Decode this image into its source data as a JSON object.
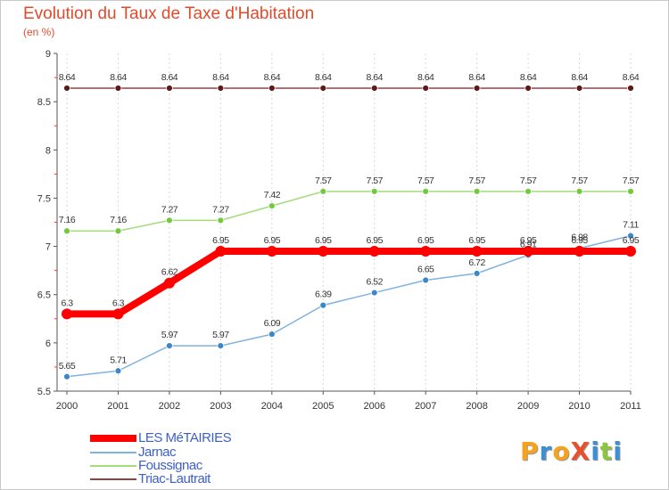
{
  "header": {
    "title": "Evolution du Taux de Taxe d'Habitation",
    "subtitle": "(en %)"
  },
  "logo": {
    "text": "ProXiti",
    "letters": [
      "P",
      "r",
      "o",
      "X",
      "i",
      "t",
      "i"
    ],
    "colors": [
      "#f7a21b",
      "#3a8fd6",
      "#f7a21b",
      "#e8502b",
      "#3a8fd6",
      "#8cc63f",
      "#3a8fd6"
    ]
  },
  "chart_data": {
    "type": "line",
    "categories": [
      "2000",
      "2001",
      "2002",
      "2003",
      "2004",
      "2005",
      "2006",
      "2007",
      "2008",
      "2009",
      "2010",
      "2011"
    ],
    "ylim": [
      5.5,
      9
    ],
    "yticks": [
      "5.5",
      "6",
      "6.5",
      "7",
      "7.5",
      "8",
      "8.5",
      "9"
    ],
    "grid": "vertical",
    "legend_position": "bottom-left",
    "series": [
      {
        "name": "LES MéTAIRIES",
        "color": "#ff0000",
        "marker": "#ff0000",
        "values": [
          6.3,
          6.3,
          6.62,
          6.95,
          6.95,
          6.95,
          6.95,
          6.95,
          6.95,
          6.95,
          6.95,
          6.95
        ],
        "labels": [
          "6.3",
          "6.3",
          "6.62",
          "6.95",
          "6.95",
          "6.95",
          "6.95",
          "6.95",
          "6.95",
          "6.95",
          "6.95",
          "6.95"
        ]
      },
      {
        "name": "Jarnac",
        "color": "#7fb2dd",
        "marker": "#3d87c8",
        "values": [
          5.65,
          5.71,
          5.97,
          5.97,
          6.09,
          6.39,
          6.52,
          6.65,
          6.72,
          6.91,
          6.98,
          7.11
        ],
        "labels": [
          "5.65",
          "5.71",
          "5.97",
          "5.97",
          "6.09",
          "6.39",
          "6.52",
          "6.65",
          "6.72",
          "6.91",
          "6.98",
          "7.11"
        ]
      },
      {
        "name": "Foussignac",
        "color": "#a5dc7a",
        "marker": "#73c93e",
        "values": [
          7.16,
          7.16,
          7.27,
          7.27,
          7.42,
          7.57,
          7.57,
          7.57,
          7.57,
          7.57,
          7.57,
          7.57
        ],
        "labels": [
          "7.16",
          "7.16",
          "7.27",
          "7.27",
          "7.42",
          "7.57",
          "7.57",
          "7.57",
          "7.57",
          "7.57",
          "7.57",
          "7.57"
        ]
      },
      {
        "name": "Triac-Lautrait",
        "color": "#8b4545",
        "marker": "#5c1a1a",
        "values": [
          8.64,
          8.64,
          8.64,
          8.64,
          8.64,
          8.64,
          8.64,
          8.64,
          8.64,
          8.64,
          8.64,
          8.64
        ],
        "labels": [
          "8.64",
          "8.64",
          "8.64",
          "8.64",
          "8.64",
          "8.64",
          "8.64",
          "8.64",
          "8.64",
          "8.64",
          "8.64",
          "8.64"
        ]
      }
    ]
  }
}
